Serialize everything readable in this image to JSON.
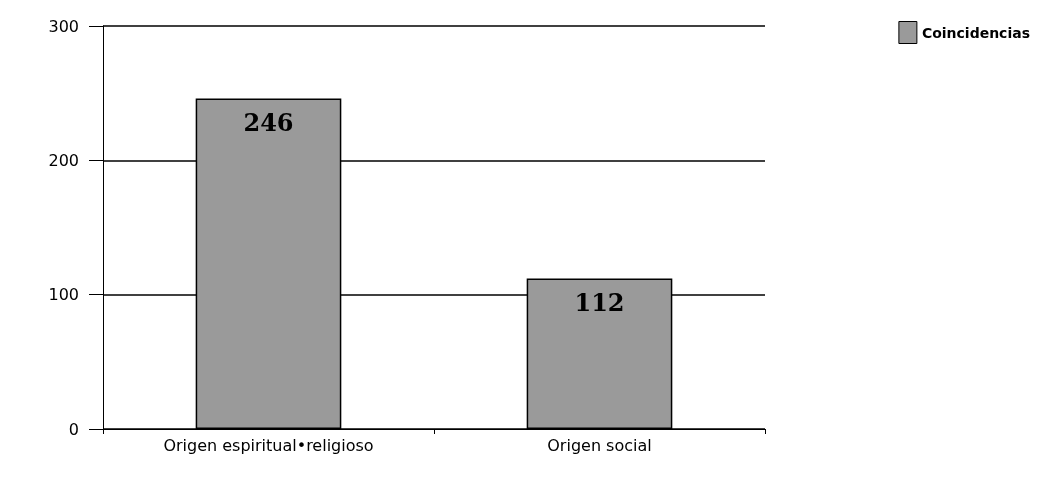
{
  "chart_data": {
    "type": "bar",
    "categories": [
      "Origen espiritual•religioso",
      "Origen social"
    ],
    "series": [
      {
        "name": "Coincidencias",
        "color": "#9a9a9a",
        "values": [
          246,
          112
        ]
      }
    ],
    "ylim": [
      0,
      300
    ],
    "yticks": [
      0,
      100,
      200,
      300
    ],
    "grid": "y",
    "legend": "top right",
    "data_labels": true
  }
}
